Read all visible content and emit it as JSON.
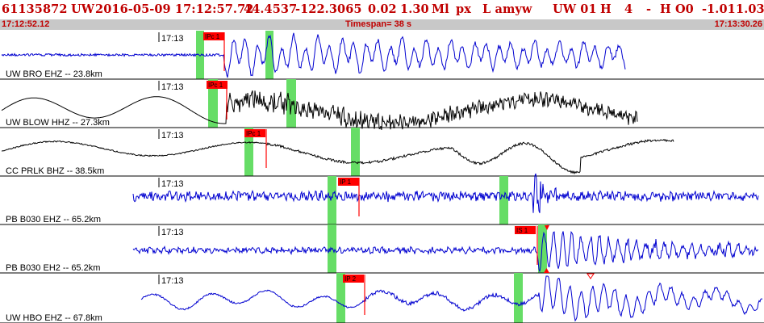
{
  "header": {
    "event_id": "61135872",
    "network": "UW",
    "datetime": "2016-05-09 17:12:57.72",
    "lat": "44.4537",
    "lon": "-122.3065",
    "depth": "0.02",
    "magnitude": "1.30",
    "mag_type": "Ml",
    "etype": "px",
    "flags": "L amyw",
    "source": "UW 01",
    "h": "H",
    "n": "4",
    "dash": "-",
    "ho": "H O0",
    "v1": "-1.01",
    "v2": "1.03"
  },
  "subbar": {
    "start_time": "17:12:52.12",
    "timespan": "Timespan=  38 s",
    "end_time": "17:13:30.26"
  },
  "colors": {
    "header_text": "#c00000",
    "trace_blue": "#0000d0",
    "trace_black": "#000000",
    "pick_red": "#ff0000",
    "window_green": "#66dd66",
    "subbar_bg": "#c8c8c8"
  },
  "channels": [
    {
      "label": "UW BRO EHZ -- 23.8km",
      "minute": "17:13",
      "pick": "IPc 1",
      "color": "blue"
    },
    {
      "label": "UW BLOW HHZ -- 27.3km",
      "minute": "17:13",
      "pick": "IPc 1",
      "color": "black"
    },
    {
      "label": "CC PRLK BHZ -- 38.5km",
      "minute": "17:13",
      "pick": "IPc 1",
      "color": "black"
    },
    {
      "label": "PB B030 EHZ -- 65.2km",
      "minute": "17:13",
      "pick": "IP 1",
      "color": "blue"
    },
    {
      "label": "PB B030 EH2 -- 65.2km",
      "minute": "17:13",
      "pick": "IS 1",
      "color": "blue"
    },
    {
      "label": "UW HBO EHZ -- 67.8km",
      "minute": "17:13",
      "pick": "IP 2",
      "color": "blue"
    }
  ]
}
